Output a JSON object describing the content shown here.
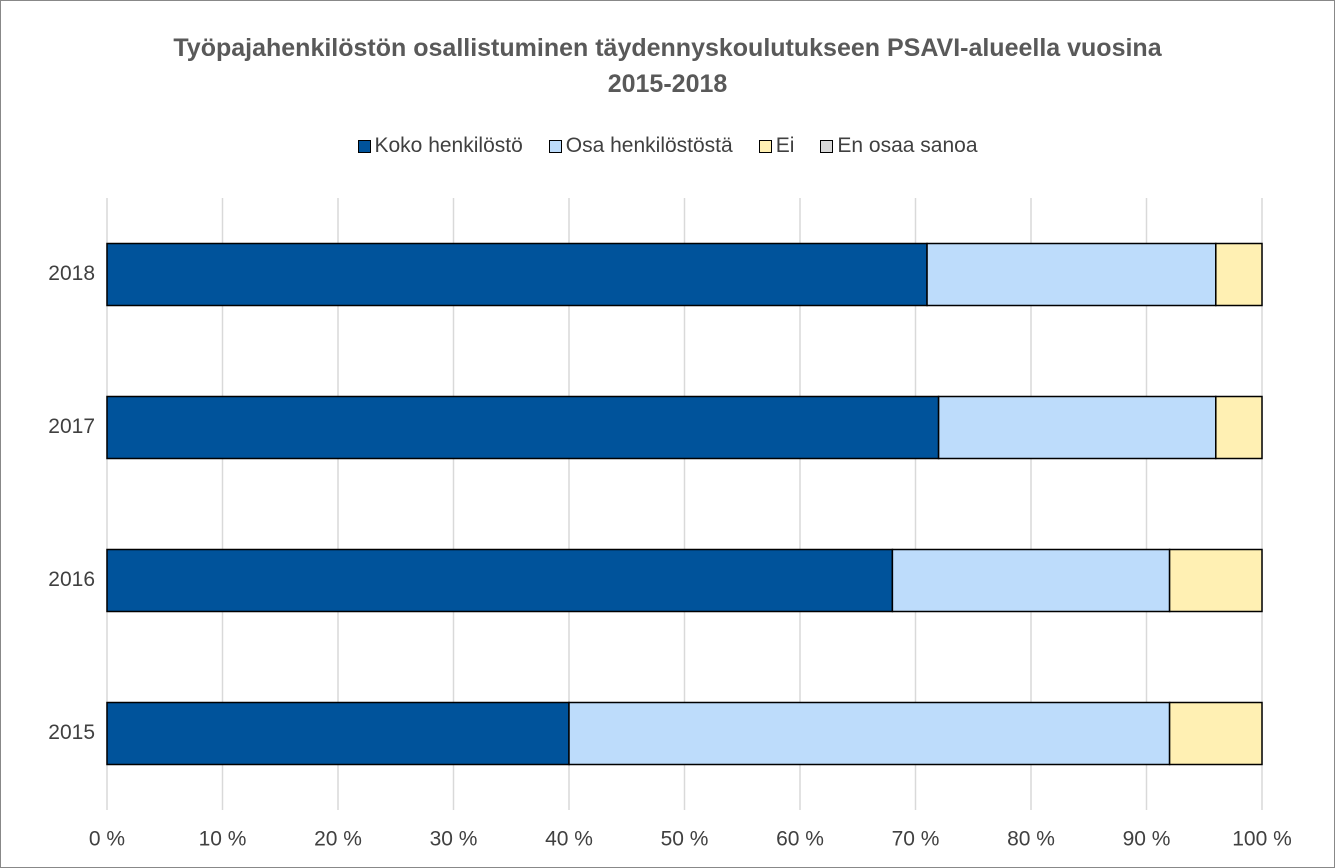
{
  "chart_data": {
    "type": "stacked_barh",
    "title": "Työpajahenkilöstön osallistuminen täydennyskoulutukseen PSAVI-alueella vuosina 2015-2018",
    "categories": [
      "2015",
      "2016",
      "2017",
      "2018"
    ],
    "series": [
      {
        "name": "Koko henkilöstö",
        "color": "#00539b",
        "values": [
          40,
          68,
          72,
          71
        ]
      },
      {
        "name": "Osa henkilöstöstä",
        "color": "#bddcfb",
        "values": [
          52,
          24,
          24,
          25
        ]
      },
      {
        "name": "Ei",
        "color": "#fff0b3",
        "values": [
          8,
          8,
          4,
          4
        ]
      },
      {
        "name": "En osaa sanoa",
        "color": "#d9d9d9",
        "values": [
          0,
          0,
          0,
          0
        ]
      }
    ],
    "xlim": [
      0,
      100
    ],
    "xticks": [
      {
        "value": 0,
        "label": "0 %"
      },
      {
        "value": 10,
        "label": "10 %"
      },
      {
        "value": 20,
        "label": "20 %"
      },
      {
        "value": 30,
        "label": "30 %"
      },
      {
        "value": 40,
        "label": "40 %"
      },
      {
        "value": 50,
        "label": "50 %"
      },
      {
        "value": 60,
        "label": "60 %"
      },
      {
        "value": 70,
        "label": "70 %"
      },
      {
        "value": 80,
        "label": "80 %"
      },
      {
        "value": 90,
        "label": "90 %"
      },
      {
        "value": 100,
        "label": "100 %"
      }
    ],
    "grid": true,
    "legend": "top"
  }
}
